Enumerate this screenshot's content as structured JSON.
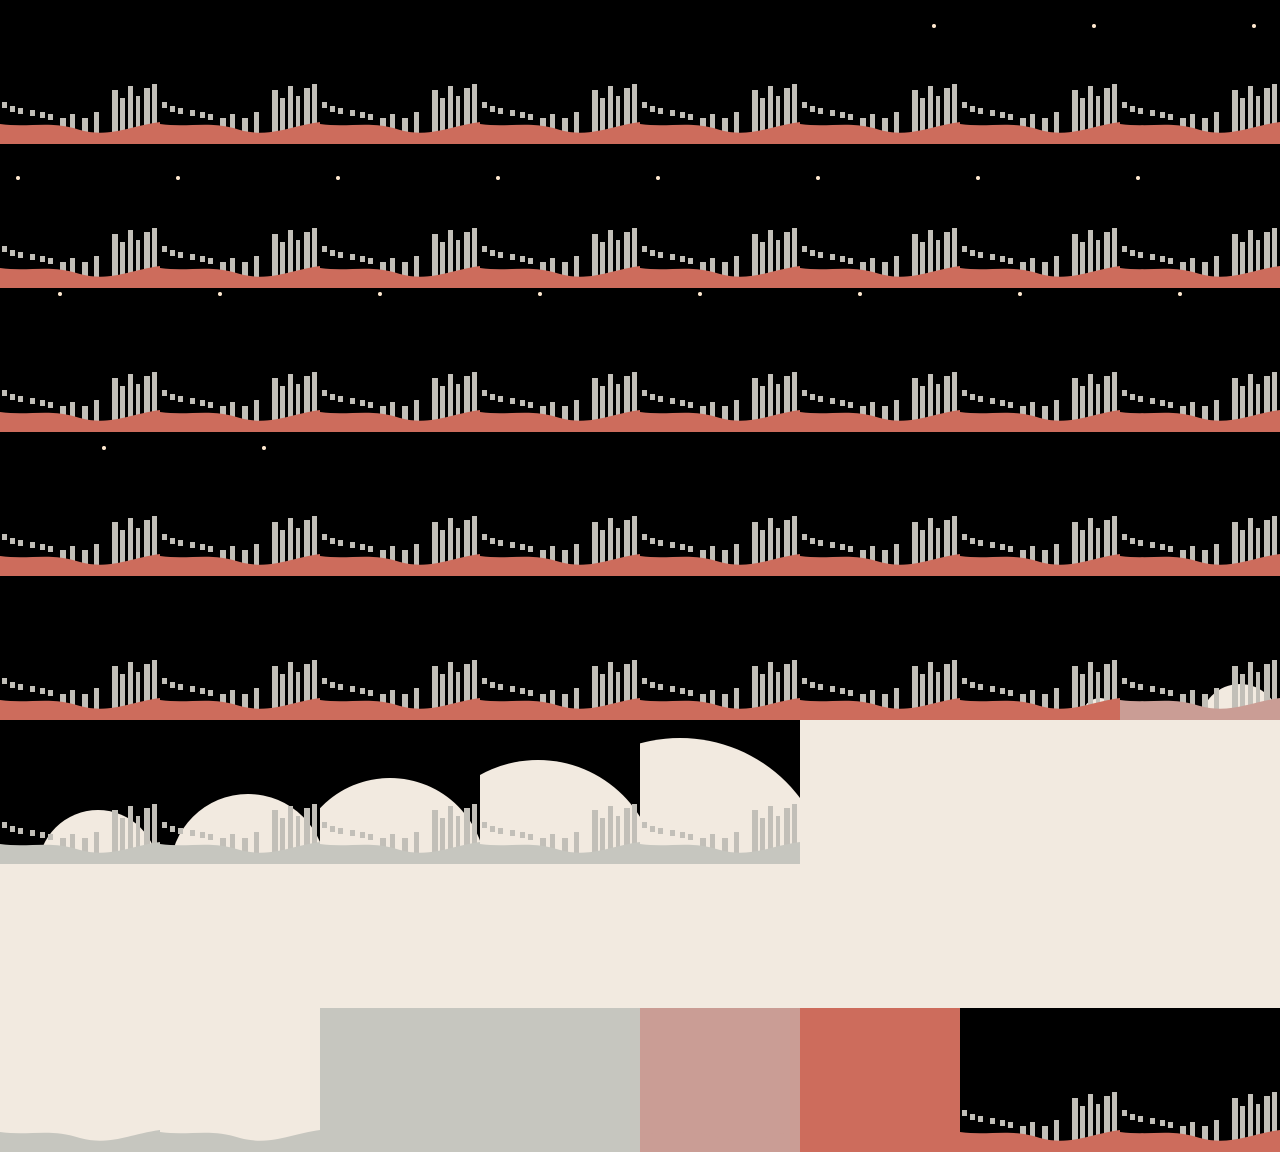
{
  "sprite_sheet": {
    "columns": 8,
    "rows": 8,
    "frame_count": 64,
    "palette": {
      "sky": "#000000",
      "ground": "#cd6c5c",
      "ground_fade_1": "#ca9d95",
      "ground_fade_2": "#c6c6bf",
      "city": "#c2bfb8",
      "moon": "#f2eae0",
      "star": "#ffe9d0"
    },
    "frames": [
      {
        "bg": "sky",
        "ground": "ground",
        "star": null,
        "moon": null
      },
      {
        "bg": "sky",
        "ground": "ground",
        "star": null,
        "moon": null
      },
      {
        "bg": "sky",
        "ground": "ground",
        "star": null,
        "moon": null
      },
      {
        "bg": "sky",
        "ground": "ground",
        "star": null,
        "moon": null
      },
      {
        "bg": "sky",
        "ground": "ground",
        "star": null,
        "moon": null
      },
      {
        "bg": "sky",
        "ground": "ground",
        "star": "a",
        "moon": null
      },
      {
        "bg": "sky",
        "ground": "ground",
        "star": "a",
        "moon": null
      },
      {
        "bg": "sky",
        "ground": "ground",
        "star": "a",
        "moon": null
      },
      {
        "bg": "sky",
        "ground": "ground",
        "star": "b",
        "moon": null
      },
      {
        "bg": "sky",
        "ground": "ground",
        "star": "b",
        "moon": null
      },
      {
        "bg": "sky",
        "ground": "ground",
        "star": "b",
        "moon": null
      },
      {
        "bg": "sky",
        "ground": "ground",
        "star": "b",
        "moon": null
      },
      {
        "bg": "sky",
        "ground": "ground",
        "star": "b",
        "moon": null
      },
      {
        "bg": "sky",
        "ground": "ground",
        "star": "b",
        "moon": null
      },
      {
        "bg": "sky",
        "ground": "ground",
        "star": "b",
        "moon": null
      },
      {
        "bg": "sky",
        "ground": "ground",
        "star": "b",
        "moon": null
      },
      {
        "bg": "sky",
        "ground": "ground",
        "star": "c",
        "moon": null
      },
      {
        "bg": "sky",
        "ground": "ground",
        "star": "c",
        "moon": null
      },
      {
        "bg": "sky",
        "ground": "ground",
        "star": "c",
        "moon": null
      },
      {
        "bg": "sky",
        "ground": "ground",
        "star": "c",
        "moon": null
      },
      {
        "bg": "sky",
        "ground": "ground",
        "star": "c",
        "moon": null
      },
      {
        "bg": "sky",
        "ground": "ground",
        "star": "c",
        "moon": null
      },
      {
        "bg": "sky",
        "ground": "ground",
        "star": "c",
        "moon": null
      },
      {
        "bg": "sky",
        "ground": "ground",
        "star": "c",
        "moon": null
      },
      {
        "bg": "sky",
        "ground": "ground",
        "star": "d",
        "moon": null
      },
      {
        "bg": "sky",
        "ground": "ground",
        "star": "d",
        "moon": null
      },
      {
        "bg": "sky",
        "ground": "ground",
        "star": null,
        "moon": null
      },
      {
        "bg": "sky",
        "ground": "ground",
        "star": null,
        "moon": null
      },
      {
        "bg": "sky",
        "ground": "ground",
        "star": null,
        "moon": null
      },
      {
        "bg": "sky",
        "ground": "ground",
        "star": null,
        "moon": null
      },
      {
        "bg": "sky",
        "ground": "ground",
        "star": null,
        "moon": null
      },
      {
        "bg": "sky",
        "ground": "ground",
        "star": null,
        "moon": null
      },
      {
        "bg": "sky",
        "ground": "ground",
        "star": null,
        "moon": null
      },
      {
        "bg": "sky",
        "ground": "ground",
        "star": null,
        "moon": null
      },
      {
        "bg": "sky",
        "ground": "ground",
        "star": null,
        "moon": null
      },
      {
        "bg": "sky",
        "ground": "ground",
        "star": null,
        "moon": null
      },
      {
        "bg": "sky",
        "ground": "ground",
        "star": null,
        "moon": null
      },
      {
        "bg": "sky",
        "ground": "ground",
        "star": null,
        "moon": null
      },
      {
        "bg": "sky",
        "ground": "ground",
        "star": null,
        "moon": "rise1"
      },
      {
        "bg": "sky",
        "ground": "ground_fade_1",
        "star": null,
        "moon": "rise2"
      },
      {
        "bg": "sky",
        "ground": "ground_fade_2",
        "star": null,
        "moon": "rise3"
      },
      {
        "bg": "sky",
        "ground": "ground_fade_2",
        "star": null,
        "moon": "rise4"
      },
      {
        "bg": "sky",
        "ground": "ground_fade_2",
        "star": null,
        "moon": "rise5"
      },
      {
        "bg": "sky",
        "ground": "ground_fade_2",
        "star": null,
        "moon": "rise6"
      },
      {
        "bg": "sky",
        "ground": "ground_fade_2",
        "star": null,
        "moon": "rise7"
      },
      {
        "bg": "moon",
        "ground": "moon",
        "star": null,
        "moon": null
      },
      {
        "bg": "moon",
        "ground": "moon",
        "star": null,
        "moon": null
      },
      {
        "bg": "moon",
        "ground": "moon",
        "star": null,
        "moon": null
      },
      {
        "bg": "moon",
        "ground": "moon",
        "star": null,
        "moon": null
      },
      {
        "bg": "moon",
        "ground": "moon",
        "star": null,
        "moon": null
      },
      {
        "bg": "moon",
        "ground": "moon",
        "star": null,
        "moon": null
      },
      {
        "bg": "moon",
        "ground": "moon",
        "star": null,
        "moon": null
      },
      {
        "bg": "moon",
        "ground": "moon",
        "star": null,
        "moon": null
      },
      {
        "bg": "moon",
        "ground": "moon",
        "star": null,
        "moon": null
      },
      {
        "bg": "moon",
        "ground": "moon",
        "star": null,
        "moon": null
      },
      {
        "bg": "moon",
        "ground": "moon",
        "star": null,
        "moon": "edge"
      },
      {
        "bg": "moon",
        "ground": "ground_fade_2",
        "star": null,
        "moon": null
      },
      {
        "bg": "moon",
        "ground": "ground_fade_2",
        "star": null,
        "moon": null
      },
      {
        "bg": "ground_fade_2",
        "ground": "ground_fade_2",
        "star": null,
        "moon": null
      },
      {
        "bg": "ground_fade_2",
        "ground": "ground_fade_2",
        "star": null,
        "moon": null
      },
      {
        "bg": "ground_fade_1",
        "ground": "ground_fade_1",
        "star": null,
        "moon": null
      },
      {
        "bg": "ground",
        "ground": "ground",
        "star": null,
        "moon": null
      },
      {
        "bg": "sky",
        "ground": "ground",
        "star": null,
        "moon": null
      },
      {
        "bg": "sky",
        "ground": "ground",
        "star": null,
        "moon": null
      }
    ]
  }
}
